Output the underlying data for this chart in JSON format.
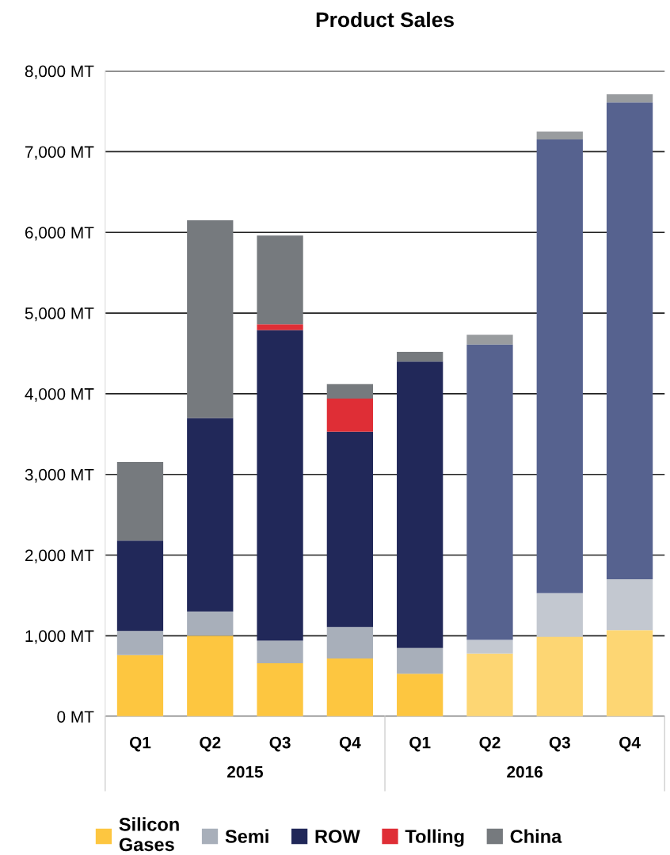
{
  "chart_data": {
    "type": "bar",
    "title": "Product Sales",
    "stacked": true,
    "categories": [
      "Q1",
      "Q2",
      "Q3",
      "Q4",
      "Q1",
      "Q2",
      "Q3",
      "Q4"
    ],
    "annotations": [
      "2015",
      "2016"
    ],
    "series": [
      {
        "name": "Silicon Gases",
        "color": "#fdc640",
        "colors": [
          "#fdc640",
          "#fdc640",
          "#fdc640",
          "#fdc640",
          "#fdc640",
          "#fdd673",
          "#fdd673",
          "#fdd673"
        ],
        "values": [
          760,
          1000,
          660,
          720,
          530,
          780,
          990,
          1070
        ]
      },
      {
        "name": "Semi",
        "color": "#a8afba",
        "colors": [
          "#a8afba",
          "#a8afba",
          "#a8afba",
          "#a8afba",
          "#a8afba",
          "#c3c8d0",
          "#c3c8d0",
          "#c3c8d0"
        ],
        "values": [
          300,
          300,
          280,
          390,
          320,
          170,
          540,
          630
        ]
      },
      {
        "name": "ROW",
        "color": "#212859",
        "colors": [
          "#212859",
          "#212859",
          "#212859",
          "#212859",
          "#212859",
          "#56628f",
          "#56628f",
          "#56628f"
        ],
        "values": [
          1120,
          2400,
          3850,
          2420,
          3550,
          3660,
          5620,
          5910
        ]
      },
      {
        "name": "Tolling",
        "color": "#df2e36",
        "values": [
          null,
          null,
          70,
          410,
          null,
          null,
          null,
          null
        ]
      },
      {
        "name": "China",
        "color": "#767a7e",
        "colors": [
          "#767a7e",
          "#767a7e",
          "#767a7e",
          "#767a7e",
          "#767a7e",
          "#999c9f",
          "#999c9f",
          "#999c9f"
        ],
        "values": [
          975,
          2450,
          1100,
          180,
          120,
          120,
          100,
          100
        ]
      }
    ],
    "ylim": [
      0,
      8000
    ],
    "yticks": [
      {
        "value": 0,
        "label": "0 MT"
      },
      {
        "value": 1000,
        "label": "1,000 MT"
      },
      {
        "value": 2000,
        "label": "2,000 MT"
      },
      {
        "value": 3000,
        "label": "3,000 MT"
      },
      {
        "value": 4000,
        "label": "4,000 MT"
      },
      {
        "value": 5000,
        "label": "5,000 MT"
      },
      {
        "value": 6000,
        "label": "6,000 MT"
      },
      {
        "value": 7000,
        "label": "7,000 MT"
      },
      {
        "value": 8000,
        "label": "8,000 MT"
      }
    ],
    "grid": "y",
    "legend": "bottom"
  }
}
